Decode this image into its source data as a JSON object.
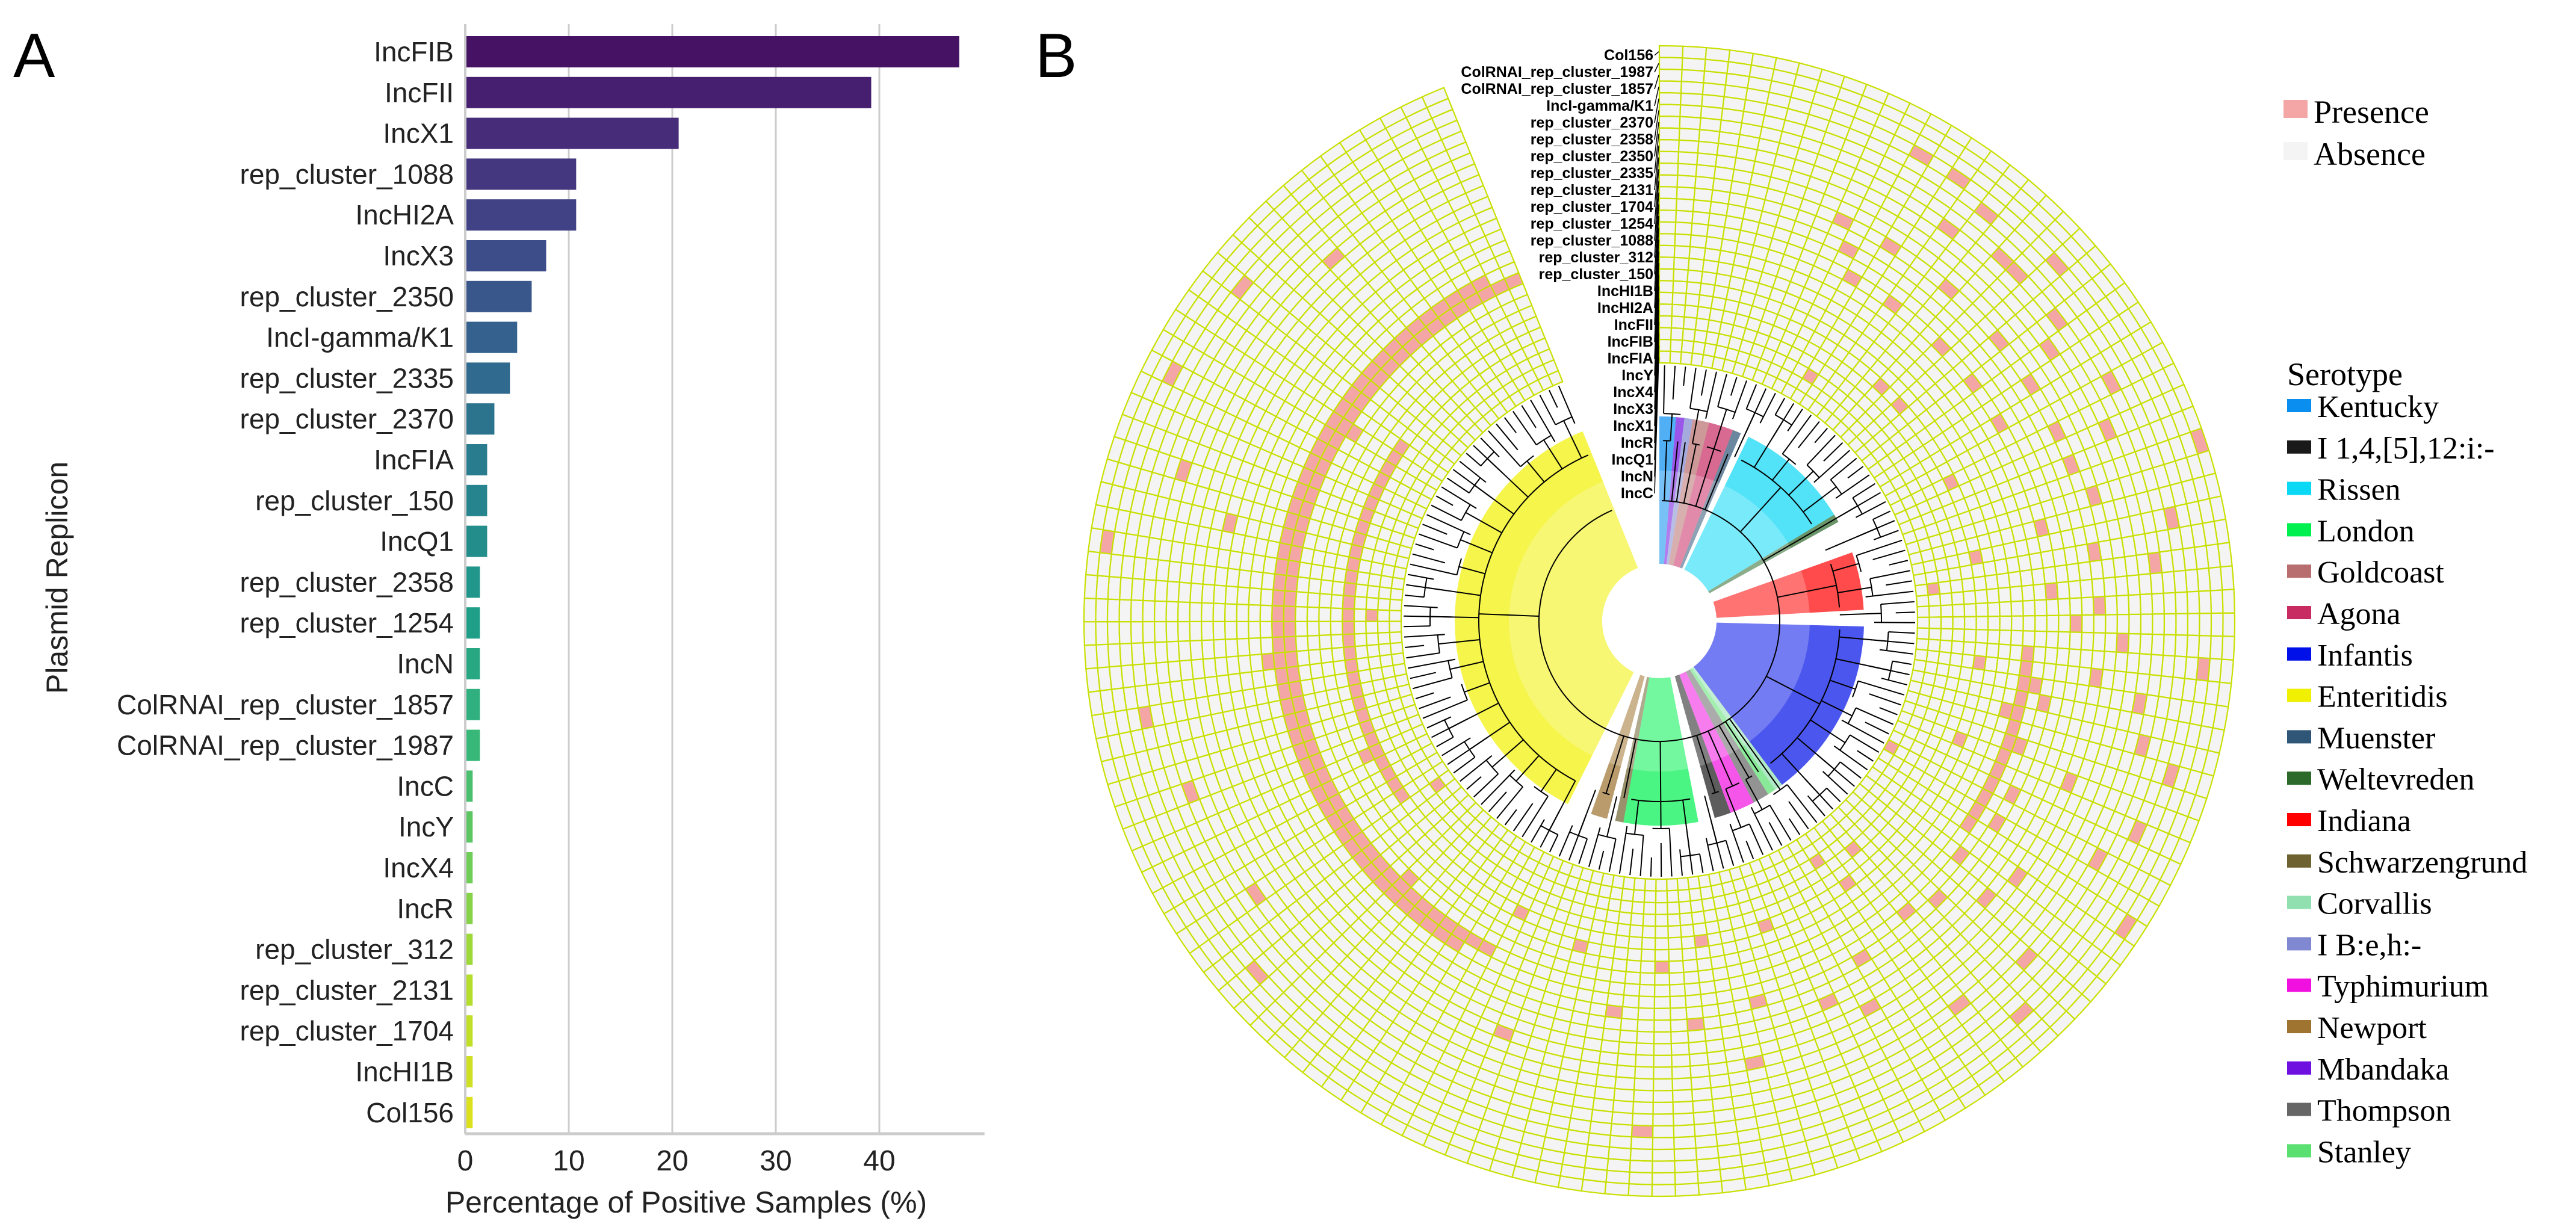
{
  "panel_a": {
    "label": "A"
  },
  "panel_b": {
    "label": "B"
  },
  "chart_data": [
    {
      "type": "bar",
      "orientation": "horizontal",
      "ylabel": "Plasmid Replicon",
      "xlabel": "Percentage of Positive Samples (%)",
      "xlim": [
        0,
        49
      ],
      "xticks": [
        "0",
        "10",
        "20",
        "30",
        "40"
      ],
      "grid": true,
      "colormap": "viridis",
      "categories": [
        "IncFIB",
        "IncFII",
        "IncX1",
        "rep_cluster_1088",
        "IncHI2A",
        "IncX3",
        "rep_cluster_2350",
        "IncI-gamma/K1",
        "rep_cluster_2335",
        "rep_cluster_2370",
        "IncFIA",
        "rep_cluster_150",
        "IncQ1",
        "rep_cluster_2358",
        "rep_cluster_1254",
        "IncN",
        "ColRNAI_rep_cluster_1857",
        "ColRNAI_rep_cluster_1987",
        "IncC",
        "IncY",
        "IncX4",
        "IncR",
        "rep_cluster_312",
        "rep_cluster_2131",
        "rep_cluster_1704",
        "IncHI1B",
        "Col156"
      ],
      "values": [
        47.6,
        39.1,
        20.5,
        10.6,
        10.6,
        7.7,
        6.3,
        4.9,
        4.2,
        2.7,
        2.0,
        2.0,
        2.0,
        1.3,
        1.3,
        1.3,
        1.3,
        1.3,
        0.6,
        0.6,
        0.6,
        0.6,
        0.6,
        0.6,
        0.6,
        0.6,
        0.6
      ]
    },
    {
      "type": "heatmap",
      "layout": "circular",
      "samples": 144,
      "colors": {
        "presence": "#f4a6a6",
        "absence": "#f4f4f4",
        "grid": "#c8e000"
      },
      "legend": [
        {
          "label": "Presence",
          "color": "#f4a6a6"
        },
        {
          "label": "Absence",
          "color": "#f4f4f4"
        }
      ],
      "rings": [
        {
          "name": "Col156",
          "positives": [
            30
          ]
        },
        {
          "name": "ColRNAI_rep_cluster_1987",
          "positives": [
            52,
            118
          ]
        },
        {
          "name": "ColRNAI_rep_cluster_1857",
          "positives": [
            40,
            126
          ]
        },
        {
          "name": "IncI-gamma/K1",
          "positives": [
            12,
            14,
            20,
            45,
            58,
            97,
            131
          ]
        },
        {
          "name": "rep_cluster_2370",
          "positives": [
            16,
            33,
            48,
            110
          ]
        },
        {
          "name": "rep_cluster_2358",
          "positives": [
            26,
            77
          ]
        },
        {
          "name": "rep_cluster_2350",
          "positives": [
            18,
            19,
            22,
            35,
            44,
            50,
            56,
            106,
            122
          ]
        },
        {
          "name": "rep_cluster_2335",
          "positives": [
            15,
            28,
            42,
            60,
            100,
            135
          ]
        },
        {
          "name": "rep_cluster_2131",
          "positives": [
            23
          ]
        },
        {
          "name": "rep_cluster_1704",
          "positives": [
            39
          ]
        },
        {
          "name": "rep_cluster_1254",
          "positives": [
            31,
            71
          ]
        },
        {
          "name": "rep_cluster_1088",
          "positives": [
            10,
            13,
            17,
            21,
            24,
            27,
            29,
            34,
            37,
            41,
            47,
            53,
            64,
            85,
            120
          ]
        },
        {
          "name": "rep_cluster_312",
          "positives": [
            55
          ]
        },
        {
          "name": "rep_cluster_150",
          "positives": [
            11,
            38,
            66
          ]
        },
        {
          "name": "IncHI1B",
          "positives": [
            74
          ]
        },
        {
          "name": "IncHI2A",
          "positives": [
            12,
            15,
            19,
            22,
            25,
            32,
            36,
            43,
            49,
            51,
            57,
            63,
            70,
            79,
            112
          ]
        },
        {
          "name": "IncFII",
          "positives": [
            [
              90,
              141
            ],
            42,
            46,
            54,
            59
          ]
        },
        {
          "name": "IncFIB",
          "positives": [
            [
              88,
              143
            ],
            [
              40,
              52
            ]
          ]
        },
        {
          "name": "IncFIA",
          "positives": [
            44,
            95,
            128
          ]
        },
        {
          "name": "IncY",
          "positives": [
            76
          ]
        },
        {
          "name": "IncX4",
          "positives": [
            82
          ]
        },
        {
          "name": "IncX3",
          "positives": [
            18,
            20,
            27,
            33,
            41,
            47,
            61,
            68,
            73,
            87,
            104
          ]
        },
        {
          "name": "IncX1",
          "positives": [
            [
              100,
              129
            ]
          ]
        },
        {
          "name": "IncR",
          "positives": [
            59
          ]
        },
        {
          "name": "IncQ1",
          "positives": [
            13,
            62,
            115
          ]
        },
        {
          "name": "IncN",
          "positives": [
            35,
            99
          ]
        },
        {
          "name": "IncC",
          "positives": [
            50
          ]
        }
      ],
      "serotype_title": "Serotype",
      "serotypes": [
        {
          "label": "Kentucky",
          "color": "#0a8ef0",
          "samples": [
            0,
            1
          ]
        },
        {
          "label": "I 1,4,[5],12:i:-",
          "color": "#1a1a1a",
          "samples": [
            68,
            69
          ]
        },
        {
          "label": "Rissen",
          "color": "#0bd8f5",
          "samples": [
            11,
            24
          ]
        },
        {
          "label": "London",
          "color": "#00f050",
          "samples": [
            72,
            80
          ]
        },
        {
          "label": "Goldcoast",
          "color": "#b86e6e",
          "samples": [
            4,
            5
          ]
        },
        {
          "label": "Agona",
          "color": "#c82a62",
          "samples": [
            6,
            8
          ]
        },
        {
          "label": "Infantis",
          "color": "#0010e8",
          "samples": [
            39,
            60
          ]
        },
        {
          "label": "Enteritidis",
          "color": "#f0f000",
          "samples": [
            88,
            143
          ]
        },
        {
          "label": "Muenster",
          "color": "#2f5577",
          "samples": [
            9,
            9
          ]
        },
        {
          "label": "Weltevreden",
          "color": "#2b6a2b",
          "samples": [
            25,
            25
          ]
        },
        {
          "label": "Indiana",
          "color": "#ff0000",
          "samples": [
            30,
            36
          ]
        },
        {
          "label": "Schwarzengrund",
          "color": "#6e6330",
          "samples": [
            81,
            81
          ]
        },
        {
          "label": "Corvallis",
          "color": "#90e0b0",
          "samples": [
            61,
            61
          ]
        },
        {
          "label": "I B:e,h:-",
          "color": "#7f88d0",
          "samples": [
            3,
            3
          ]
        },
        {
          "label": "Typhimurium",
          "color": "#f010e0",
          "samples": [
            65,
            67
          ]
        },
        {
          "label": "Newport",
          "color": "#9e7430",
          "samples": [
            83,
            84
          ]
        },
        {
          "label": "Mbandaka",
          "color": "#7010e0",
          "samples": [
            2,
            2
          ]
        },
        {
          "label": "Thompson",
          "color": "#666666",
          "samples": [
            63,
            64
          ]
        },
        {
          "label": "Stanley",
          "color": "#5ae070",
          "samples": [
            62,
            62
          ]
        }
      ]
    }
  ]
}
